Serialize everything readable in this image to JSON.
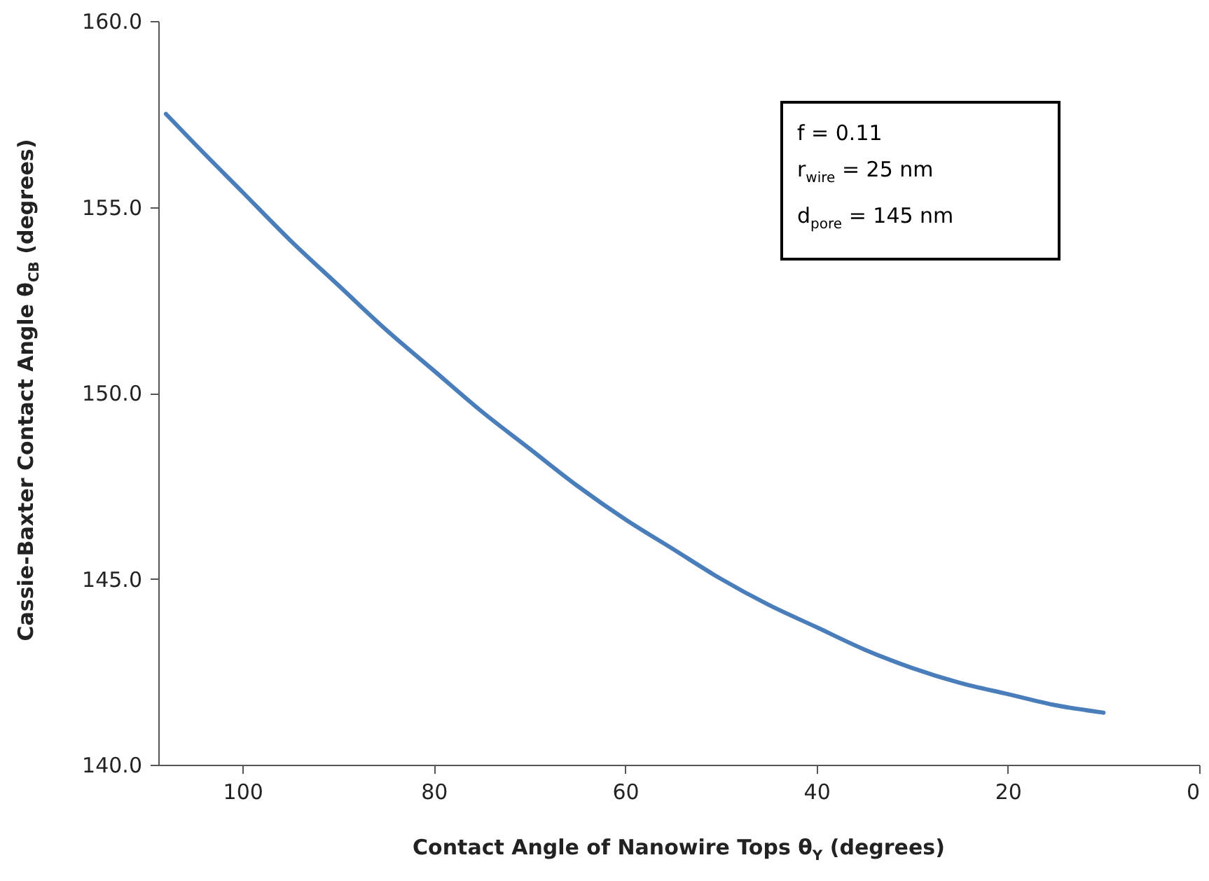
{
  "chart_data": {
    "type": "line",
    "xlabel": "Contact Angle of Nanowire Tops θ$_{Y}$ (degrees)",
    "ylabel": "Cassie-Baxter Contact Angle θ$_{CB}$ (degrees)",
    "x": [
      108,
      105,
      100,
      95,
      90,
      85,
      80,
      75,
      70,
      65,
      60,
      55,
      50,
      45,
      40,
      35,
      30,
      25,
      20,
      15,
      10
    ],
    "series": [
      {
        "color": "#4a7ebb",
        "values": [
          157.5,
          156.7,
          155.4,
          154.1,
          152.9,
          151.7,
          150.6,
          149.5,
          148.5,
          147.5,
          146.6,
          145.8,
          145.0,
          144.3,
          143.7,
          143.1,
          142.6,
          142.2,
          141.9,
          141.6,
          141.4
        ]
      }
    ],
    "xlim": [
      108.8,
      0
    ],
    "xticks": [
      100,
      80,
      60,
      40,
      20,
      0
    ],
    "ylim": [
      140,
      160
    ],
    "yticks": [
      {
        "value": 140,
        "label": "140.0"
      },
      {
        "value": 145,
        "label": "145.0"
      },
      {
        "value": 150,
        "label": "150.0"
      },
      {
        "value": 155,
        "label": "155.0"
      },
      {
        "value": 160,
        "label": "160.0"
      }
    ],
    "grid": false,
    "marker": "none",
    "line_style": "solid",
    "annotations": [
      "f = 0.11",
      "r$_{wire}$ = 25 nm",
      "d$_{pore}$ = 145 nm"
    ]
  }
}
